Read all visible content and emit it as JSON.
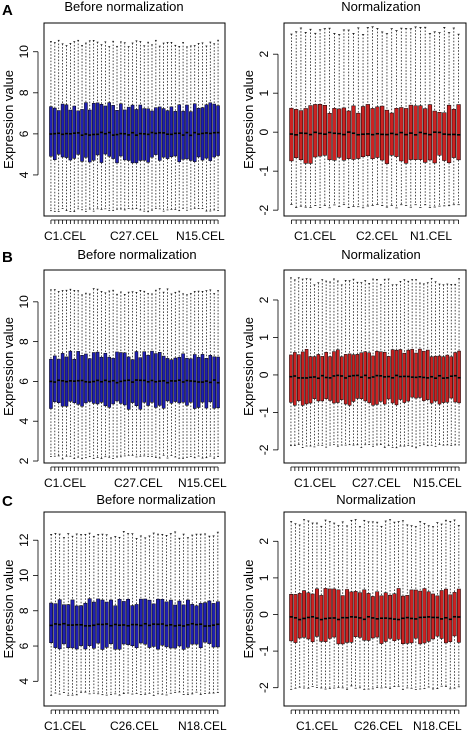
{
  "chart_data": [
    {
      "type": "boxplot",
      "panel": "A",
      "title": "Before normalization",
      "ylabel": "Expression value",
      "ylim": [
        2,
        11.4
      ],
      "yticks": [
        4,
        6,
        8,
        10
      ],
      "category_labels": [
        "C1.CEL",
        "C27.CEL",
        "N15.CEL"
      ],
      "n_boxes": 44,
      "box_color": "#1f1fb3",
      "summary": {
        "whisker_low": 2.3,
        "q1": 4.8,
        "median": 6.0,
        "q3": 7.3,
        "whisker_high": 10.4
      }
    },
    {
      "type": "boxplot",
      "panel": "A",
      "title": "Normalization",
      "ylabel": "Expression value",
      "ylim": [
        -2.15,
        2.8
      ],
      "yticks": [
        -2,
        -1,
        0,
        1,
        2
      ],
      "category_labels": [
        "C1.CEL",
        "C2.CEL",
        "N1.CEL"
      ],
      "n_boxes": 36,
      "box_color": "#cc2222",
      "summary": {
        "whisker_low": -1.9,
        "q1": -0.7,
        "median": -0.03,
        "q3": 0.6,
        "whisker_high": 2.6
      }
    },
    {
      "type": "boxplot",
      "panel": "B",
      "title": "Before normalization",
      "ylabel": "Expression value",
      "ylim": [
        1.9,
        11.6
      ],
      "yticks": [
        2,
        4,
        6,
        8,
        10
      ],
      "category_labels": [
        "C1.CEL",
        "C27.CEL",
        "N15.CEL"
      ],
      "n_boxes": 44,
      "box_color": "#1f1fb3",
      "summary": {
        "whisker_low": 2.2,
        "q1": 4.8,
        "median": 6.0,
        "q3": 7.3,
        "whisker_high": 10.5
      }
    },
    {
      "type": "boxplot",
      "panel": "B",
      "title": "Normalization",
      "ylabel": "Expression value",
      "ylim": [
        -2.35,
        2.8
      ],
      "yticks": [
        -2,
        -1,
        0,
        1,
        2
      ],
      "category_labels": [
        "C1.CEL",
        "C27.CEL",
        "N15.CEL"
      ],
      "n_boxes": 44,
      "box_color": "#cc2222",
      "summary": {
        "whisker_low": -1.9,
        "q1": -0.7,
        "median": -0.05,
        "q3": 0.6,
        "whisker_high": 2.5
      }
    },
    {
      "type": "boxplot",
      "panel": "C",
      "title": "Before normalization",
      "ylabel": "Expression value",
      "ylim": [
        2.6,
        13.6
      ],
      "yticks": [
        4,
        6,
        8,
        10,
        12
      ],
      "category_labels": [
        "C1.CEL",
        "C26.CEL",
        "N18.CEL"
      ],
      "n_boxes": 40,
      "box_color": "#1f1fb3",
      "summary": {
        "whisker_low": 3.3,
        "q1": 6.0,
        "median": 7.2,
        "q3": 8.5,
        "whisker_high": 12.3
      }
    },
    {
      "type": "boxplot",
      "panel": "C",
      "title": "Normalization",
      "ylabel": "Expression value",
      "ylim": [
        -2.5,
        2.8
      ],
      "yticks": [
        -2,
        -1,
        0,
        1,
        2
      ],
      "category_labels": [
        "C1.CEL",
        "C26.CEL",
        "N18.CEL"
      ],
      "n_boxes": 40,
      "box_color": "#cc2222",
      "summary": {
        "whisker_low": -2.0,
        "q1": -0.7,
        "median": -0.1,
        "q3": 0.6,
        "whisker_high": 2.5
      }
    }
  ]
}
